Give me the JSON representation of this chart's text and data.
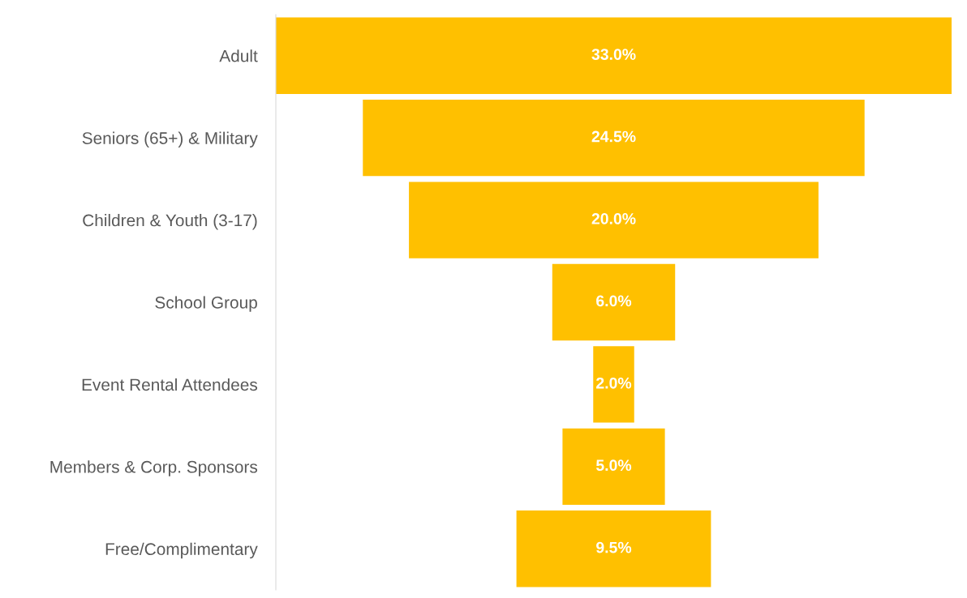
{
  "chart_data": {
    "type": "other",
    "categories": [
      "Adult",
      "Seniors (65+) & Military",
      "Children & Youth (3-17)",
      "School Group",
      "Event Rental Attendees",
      "Members & Corp. Sponsors",
      "Free/Complimentary"
    ],
    "values": [
      33.0,
      24.5,
      20.0,
      6.0,
      2.0,
      5.0,
      9.5
    ],
    "value_labels": [
      "33.0%",
      "24.5%",
      "20.0%",
      "6.0%",
      "2.0%",
      "5.0%",
      "9.5%"
    ],
    "color": "#ffc000"
  }
}
